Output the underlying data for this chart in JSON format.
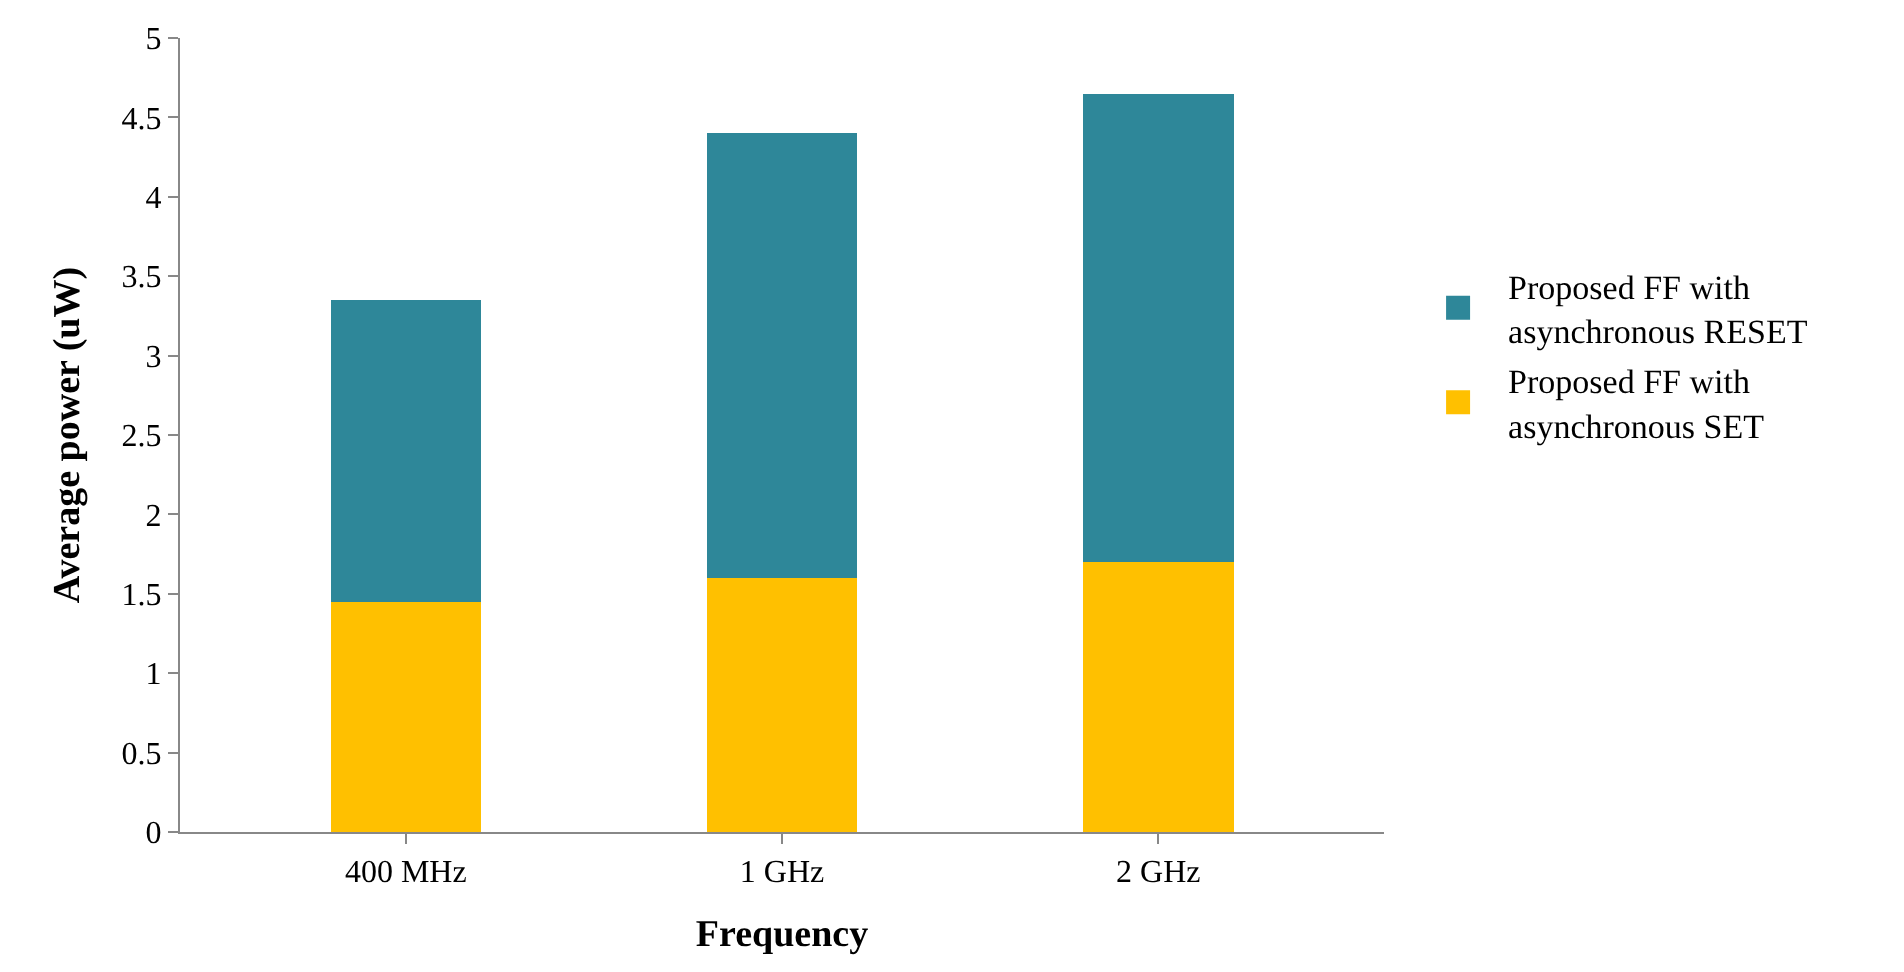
{
  "chart_data": {
    "type": "bar",
    "stacked": true,
    "xlabel": "Frequency",
    "ylabel": "Average power (uW)",
    "categories": [
      "400 MHz",
      "1 GHz",
      "2 GHz"
    ],
    "series": [
      {
        "name": "Proposed FF with asynchronous SET",
        "color": "#ffc000",
        "values": [
          1.45,
          1.6,
          1.7
        ]
      },
      {
        "name": "Proposed FF with asynchronous RESET",
        "color": "#2e8799",
        "values": [
          1.9,
          2.8,
          2.95
        ]
      }
    ],
    "ylim": [
      0,
      5
    ],
    "yticks": [
      0,
      0.5,
      1,
      1.5,
      2,
      2.5,
      3,
      3.5,
      4,
      4.5,
      5
    ],
    "legend": "right"
  }
}
